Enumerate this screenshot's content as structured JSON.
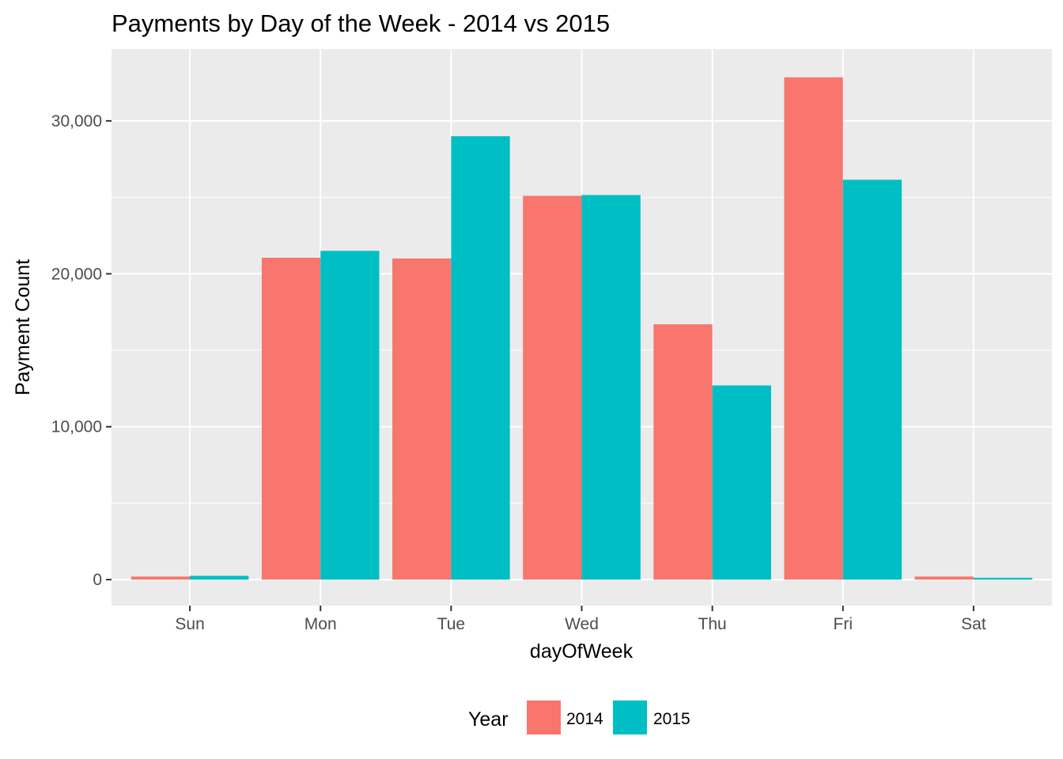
{
  "chart_data": {
    "type": "bar",
    "title": "Payments by Day of the Week - 2014 vs 2015",
    "xlabel": "dayOfWeek",
    "ylabel": "Payment Count",
    "categories": [
      "Sun",
      "Mon",
      "Tue",
      "Wed",
      "Thu",
      "Fri",
      "Sat"
    ],
    "series": [
      {
        "name": "2014",
        "color": "#F8766D",
        "values": [
          200,
          21050,
          21000,
          25100,
          16700,
          32850,
          200
        ]
      },
      {
        "name": "2015",
        "color": "#00BFC4",
        "values": [
          250,
          21500,
          29000,
          25150,
          12700,
          26150,
          120
        ]
      }
    ],
    "ylim": [
      -1700,
      34700
    ],
    "yticks": [
      0,
      10000,
      20000,
      30000
    ],
    "ytick_labels": [
      "0",
      "10,000",
      "20,000",
      "30,000"
    ],
    "grid": true,
    "legend": {
      "title": "Year",
      "placement": "bottom"
    },
    "panel_background": "#EBEBEB",
    "grid_color": "#FFFFFF"
  }
}
